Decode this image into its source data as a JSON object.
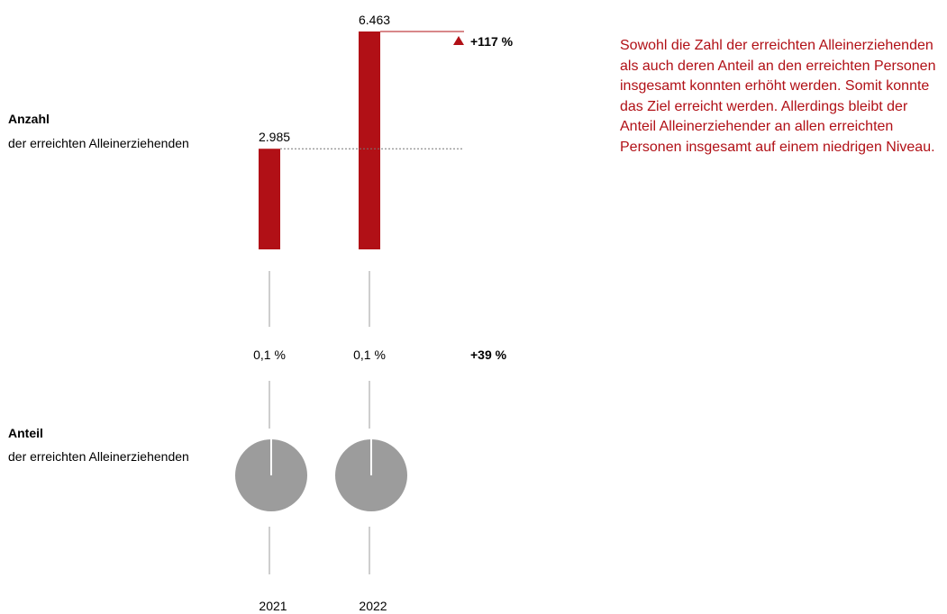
{
  "labels": {
    "count_title": "Anzahl",
    "count_subtitle": "der erreichten Alleinerziehenden",
    "share_title": "Anteil",
    "share_subtitle": "der erreichten Alleinerziehenden"
  },
  "description": "Sowohl die Zahl der erreichten Alleinerziehenden als auch deren Anteil an den erreichten Personen insgesamt konnten erhöht werden. Somit konnte das Ziel erreicht werden. Allerdings bleibt der Anteil Alleinerziehender an allen erreichten Personen insgesamt auf einem niedrigen Niveau.",
  "colors": {
    "bar": "#b11016",
    "pie": "#9c9c9c",
    "line": "#bdbdbd"
  },
  "chart_data": [
    {
      "type": "bar",
      "categories": [
        "2021",
        "2022"
      ],
      "values": [
        2985,
        6463
      ],
      "value_labels": [
        "2.985",
        "6.463"
      ],
      "change_label": "+117 %",
      "change_icon": "triangle-up-icon"
    },
    {
      "type": "pie",
      "categories": [
        "2021",
        "2022"
      ],
      "values_percent": [
        0.1,
        0.1
      ],
      "value_labels": [
        "0,1 %",
        "0,1 %"
      ],
      "change_label": "+39 %"
    }
  ]
}
